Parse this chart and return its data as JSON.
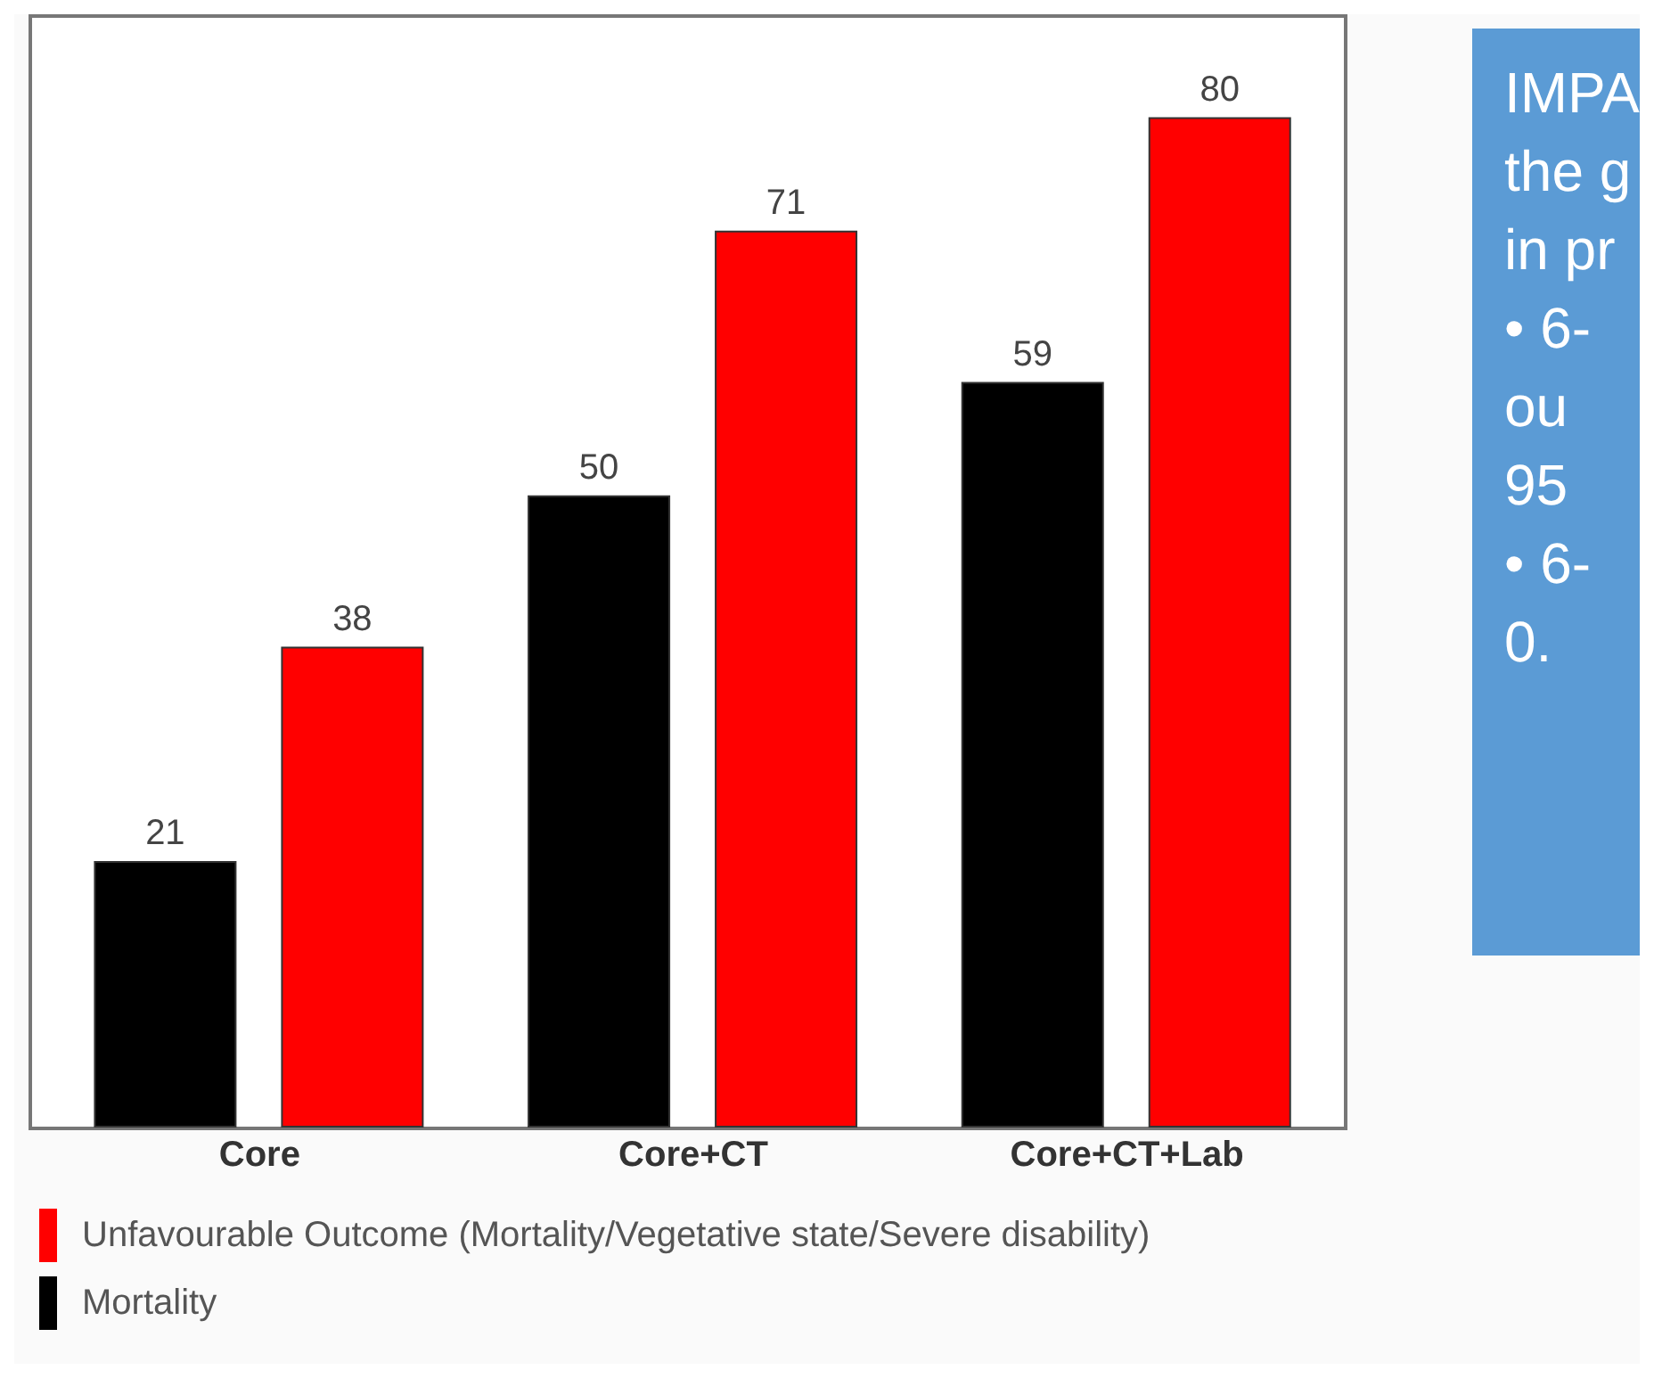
{
  "chart_data": {
    "type": "bar",
    "categories": [
      "Core",
      "Core+CT",
      "Core+CT+Lab"
    ],
    "series": [
      {
        "name": "Mortality",
        "color": "#000000",
        "values": [
          21,
          50,
          59
        ]
      },
      {
        "name": "Unfavourable Outcome (Mortality/Vegetative state/Severe disability)",
        "color": "#ff0000",
        "values": [
          38,
          71,
          80
        ]
      }
    ],
    "tick_labels": "x",
    "data_labels": true,
    "legend": "bottom",
    "annotations": [
      "IMPA",
      "the g",
      "in pr",
      "• 6-",
      "ou",
      "95",
      "• 6-",
      "0."
    ]
  }
}
